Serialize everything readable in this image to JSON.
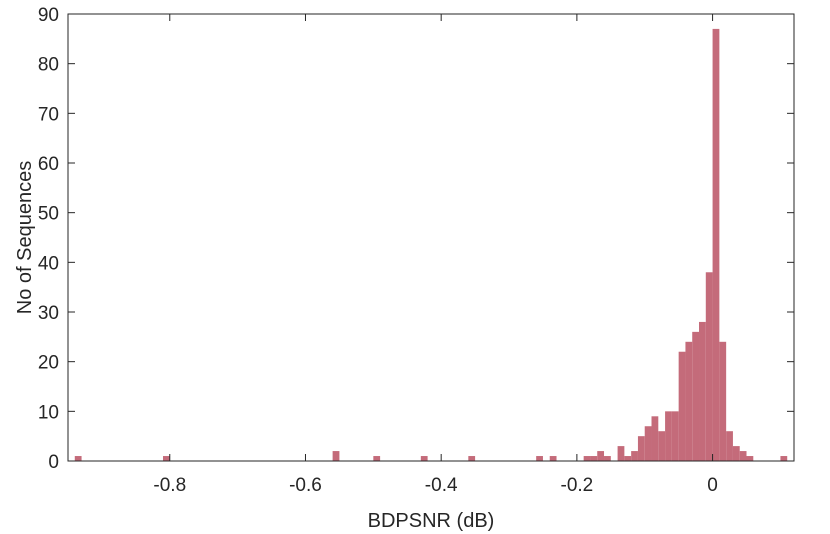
{
  "chart_data": {
    "type": "bar",
    "subtype": "histogram",
    "title": "",
    "xlabel": "BDPSNR (dB)",
    "ylabel": "No of Sequences",
    "xlim": [
      -0.95,
      0.12
    ],
    "ylim": [
      0,
      90
    ],
    "xticks": [
      -0.8,
      -0.6,
      -0.4,
      -0.2,
      0
    ],
    "xtick_labels": [
      "-0.8",
      "-0.6",
      "-0.4",
      "-0.2",
      "0"
    ],
    "yticks": [
      0,
      10,
      20,
      30,
      40,
      50,
      60,
      70,
      80,
      90
    ],
    "ytick_labels": [
      "0",
      "10",
      "20",
      "30",
      "40",
      "50",
      "60",
      "70",
      "80",
      "90"
    ],
    "grid": false,
    "legend": false,
    "box": true,
    "bar_color": "#c46b7a",
    "bin_width": 0.01,
    "series": [
      {
        "bin_starts": [
          -0.94,
          -0.81,
          -0.56,
          -0.5,
          -0.43,
          -0.36,
          -0.26,
          -0.24,
          -0.19,
          -0.18,
          -0.17,
          -0.16,
          -0.14,
          -0.13,
          -0.12,
          -0.11,
          -0.1,
          -0.09,
          -0.08,
          -0.07,
          -0.06,
          -0.05,
          -0.04,
          -0.03,
          -0.02,
          -0.01,
          0,
          0.01,
          0.02,
          0.03,
          0.04,
          0.05,
          0.1
        ],
        "counts": [
          1,
          1,
          2,
          1,
          1,
          1,
          1,
          1,
          1,
          1,
          2,
          1,
          3,
          1,
          2,
          5,
          7,
          9,
          6,
          10,
          10,
          22,
          24,
          26,
          28,
          38,
          87,
          24,
          6,
          3,
          2,
          1,
          1
        ]
      }
    ]
  }
}
